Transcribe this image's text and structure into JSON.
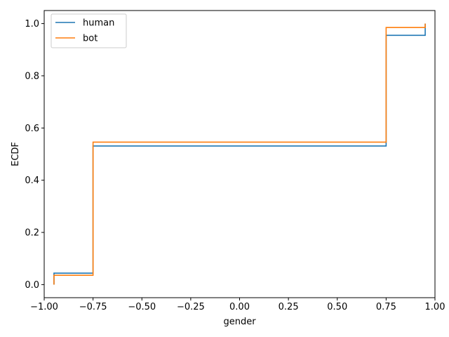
{
  "chart_data": {
    "type": "line",
    "step": "post",
    "title": "",
    "xlabel": "gender",
    "ylabel": "ECDF",
    "xlim": [
      -1.0,
      1.0
    ],
    "ylim": [
      -0.05,
      1.05
    ],
    "xticks": [
      -1.0,
      -0.75,
      -0.5,
      -0.25,
      0.0,
      0.25,
      0.5,
      0.75,
      1.0
    ],
    "xtick_labels": [
      "−1.00",
      "−0.75",
      "−0.50",
      "−0.25",
      "0.00",
      "0.25",
      "0.50",
      "0.75",
      "1.00"
    ],
    "yticks": [
      0.0,
      0.2,
      0.4,
      0.6,
      0.8,
      1.0
    ],
    "ytick_labels": [
      "0.0",
      "0.2",
      "0.4",
      "0.6",
      "0.8",
      "1.0"
    ],
    "grid": false,
    "legend_position": "top-left",
    "series": [
      {
        "name": "human",
        "color": "#1f77b4",
        "x": [
          -0.95,
          -0.95,
          -0.75,
          -0.75,
          0.75,
          0.75,
          0.95,
          0.95
        ],
        "y": [
          0.0,
          0.044,
          0.044,
          0.531,
          0.531,
          0.955,
          0.955,
          1.0
        ]
      },
      {
        "name": "bot",
        "color": "#ff7f0e",
        "x": [
          -0.95,
          -0.95,
          -0.75,
          -0.75,
          0.75,
          0.75,
          0.95,
          0.95
        ],
        "y": [
          0.0,
          0.036,
          0.036,
          0.546,
          0.546,
          0.985,
          0.985,
          1.0
        ]
      }
    ]
  }
}
